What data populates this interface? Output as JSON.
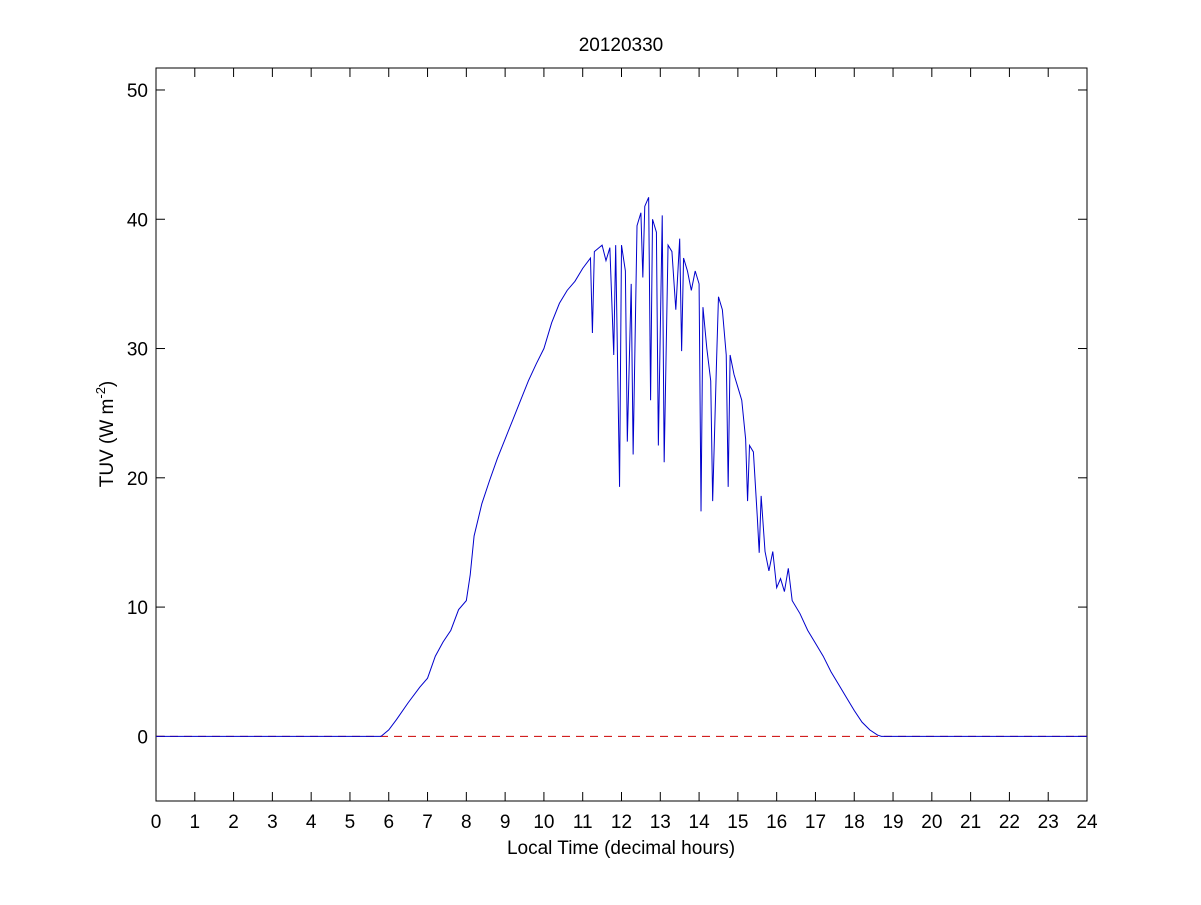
{
  "chart_data": {
    "type": "line",
    "title": "20120330",
    "xlabel": "Local Time (decimal hours)",
    "ylabel": [
      "TUV (W m",
      "-2",
      ")"
    ],
    "xlim": [
      0,
      24
    ],
    "ylim": [
      -5,
      51.7
    ],
    "xticks": [
      0,
      1,
      2,
      3,
      4,
      5,
      6,
      7,
      8,
      9,
      10,
      11,
      12,
      13,
      14,
      15,
      16,
      17,
      18,
      19,
      20,
      21,
      22,
      23,
      24
    ],
    "yticks": [
      0,
      10,
      20,
      30,
      40,
      50
    ],
    "reference_line": {
      "y": 0,
      "color": "#cc0000",
      "style": "dashed"
    },
    "series": [
      {
        "color": "#0000cc",
        "x": [
          0,
          5.8,
          6.0,
          6.2,
          6.5,
          6.8,
          7.0,
          7.2,
          7.4,
          7.6,
          7.8,
          8.0,
          8.1,
          8.2,
          8.4,
          8.6,
          8.8,
          9.0,
          9.2,
          9.4,
          9.6,
          9.8,
          10.0,
          10.2,
          10.4,
          10.6,
          10.8,
          11.0,
          11.2,
          11.25,
          11.3,
          11.5,
          11.6,
          11.7,
          11.8,
          11.85,
          11.95,
          12.0,
          12.1,
          12.15,
          12.25,
          12.3,
          12.4,
          12.5,
          12.55,
          12.6,
          12.7,
          12.75,
          12.8,
          12.9,
          12.95,
          13.05,
          13.1,
          13.2,
          13.3,
          13.4,
          13.5,
          13.55,
          13.6,
          13.7,
          13.8,
          13.9,
          14.0,
          14.05,
          14.1,
          14.2,
          14.3,
          14.35,
          14.45,
          14.5,
          14.6,
          14.7,
          14.75,
          14.8,
          14.9,
          15.0,
          15.1,
          15.2,
          15.25,
          15.3,
          15.4,
          15.5,
          15.55,
          15.6,
          15.7,
          15.8,
          15.9,
          16.0,
          16.1,
          16.2,
          16.3,
          16.4,
          16.6,
          16.8,
          17.0,
          17.2,
          17.4,
          17.6,
          17.8,
          18.0,
          18.2,
          18.4,
          18.6,
          18.7,
          24
        ],
        "values": [
          0,
          0,
          0.5,
          1.3,
          2.6,
          3.8,
          4.5,
          6.2,
          7.3,
          8.2,
          9.8,
          10.5,
          12.5,
          15.5,
          18,
          19.8,
          21.5,
          23,
          24.5,
          26,
          27.5,
          28.8,
          30,
          32,
          33.5,
          34.5,
          35.2,
          36.2,
          37,
          31.2,
          37.5,
          38,
          36.8,
          37.8,
          29.5,
          38,
          19.3,
          38,
          36,
          22.8,
          35,
          21.8,
          39.5,
          40.5,
          35.5,
          41,
          41.7,
          26,
          40,
          39,
          22.5,
          40.3,
          21.2,
          38,
          37.5,
          33,
          38.5,
          29.8,
          37,
          36,
          34.5,
          36,
          35,
          17.4,
          33.2,
          30,
          27.5,
          18.2,
          29,
          34,
          33,
          29.5,
          19.3,
          29.5,
          28,
          27,
          26,
          23,
          18.2,
          22.5,
          22,
          17,
          14.2,
          18.6,
          14.3,
          12.8,
          14.3,
          11.5,
          12.2,
          11.2,
          13,
          10.5,
          9.5,
          8.2,
          7.2,
          6.2,
          5,
          4,
          3,
          2.0,
          1.1,
          0.5,
          0.1,
          0,
          0
        ]
      }
    ]
  }
}
